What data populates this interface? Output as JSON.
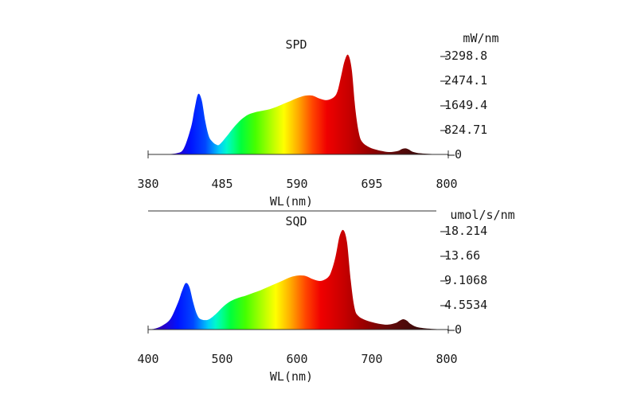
{
  "chart_data": [
    {
      "type": "area",
      "title": "SPD",
      "xlabel": "WL(nm)",
      "ylabel": "mW/nm",
      "xlim": [
        380,
        800
      ],
      "ylim": [
        0,
        3298.8
      ],
      "x_ticks": [
        "380",
        "485",
        "590",
        "695",
        "800"
      ],
      "y_ticks": [
        "3298.8",
        "2474.1",
        "1649.4",
        "824.71",
        "0"
      ],
      "fill": "visible-spectrum gradient",
      "series": [
        {
          "name": "SPD",
          "x": [
            380,
            400,
            420,
            430,
            440,
            445,
            450,
            455,
            460,
            465,
            470,
            475,
            480,
            490,
            500,
            510,
            520,
            530,
            540,
            550,
            560,
            570,
            580,
            590,
            600,
            610,
            620,
            630,
            640,
            645,
            650,
            655,
            660,
            665,
            670,
            675,
            680,
            690,
            700,
            710,
            720,
            730,
            735,
            740,
            745,
            750,
            760,
            780,
            800
          ],
          "values": [
            0,
            5,
            40,
            200,
            900,
            1500,
            2000,
            1800,
            1100,
            600,
            420,
            330,
            330,
            600,
            900,
            1150,
            1320,
            1400,
            1450,
            1500,
            1580,
            1680,
            1780,
            1880,
            1950,
            1950,
            1850,
            1800,
            1900,
            2100,
            2600,
            3100,
            3298.8,
            2800,
            1500,
            700,
            400,
            230,
            150,
            100,
            80,
            120,
            180,
            200,
            160,
            90,
            40,
            10,
            0
          ]
        }
      ]
    },
    {
      "type": "area",
      "title": "SQD",
      "xlabel": "WL(nm)",
      "ylabel": "umol/s/nm",
      "xlim": [
        400,
        800
      ],
      "ylim": [
        0,
        18.214
      ],
      "x_ticks": [
        "400",
        "500",
        "600",
        "700",
        "800"
      ],
      "y_ticks": [
        "18.214",
        "13.66",
        "9.1068",
        "4.5534",
        "0"
      ],
      "fill": "visible-spectrum gradient",
      "series": [
        {
          "name": "SQD",
          "x": [
            400,
            410,
            420,
            430,
            440,
            445,
            450,
            455,
            460,
            465,
            470,
            480,
            490,
            500,
            510,
            520,
            530,
            540,
            550,
            560,
            570,
            580,
            590,
            600,
            610,
            620,
            630,
            640,
            645,
            650,
            655,
            660,
            665,
            670,
            675,
            680,
            690,
            700,
            710,
            720,
            730,
            735,
            740,
            745,
            750,
            760,
            780,
            800
          ],
          "values": [
            0,
            0.2,
            0.8,
            2.0,
            5.0,
            7.0,
            8.5,
            7.8,
            5.0,
            2.8,
            1.9,
            1.8,
            2.8,
            4.2,
            5.2,
            5.8,
            6.2,
            6.7,
            7.2,
            7.8,
            8.4,
            9.0,
            9.6,
            9.9,
            9.8,
            9.2,
            8.9,
            9.6,
            11.0,
            13.5,
            17.0,
            18.214,
            16.0,
            9.0,
            4.0,
            2.5,
            1.7,
            1.3,
            1.0,
            0.9,
            1.2,
            1.6,
            1.9,
            1.6,
            1.0,
            0.4,
            0.1,
            0
          ]
        }
      ]
    }
  ]
}
